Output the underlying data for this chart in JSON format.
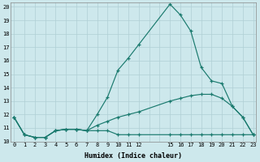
{
  "xlabel": "Humidex (Indice chaleur)",
  "background_color": "#cde8ec",
  "grid_color": "#b0cfd5",
  "line_color": "#1a7a6e",
  "x_ticks": [
    0,
    1,
    2,
    3,
    4,
    5,
    6,
    7,
    8,
    9,
    10,
    11,
    12,
    15,
    16,
    17,
    18,
    19,
    20,
    21,
    22,
    23
  ],
  "xlim": [
    -0.3,
    23.3
  ],
  "ylim": [
    10,
    20.3
  ],
  "y_ticks": [
    10,
    11,
    12,
    13,
    14,
    15,
    16,
    17,
    18,
    19,
    20
  ],
  "series": [
    {
      "x": [
        0,
        1,
        2,
        3,
        4,
        5,
        6,
        7,
        8,
        9,
        10,
        11,
        12,
        15,
        16,
        17,
        18,
        19,
        20,
        21,
        22,
        23
      ],
      "y": [
        11.8,
        10.5,
        10.3,
        10.3,
        10.8,
        10.9,
        10.9,
        10.8,
        10.8,
        10.8,
        10.5,
        10.5,
        10.5,
        10.5,
        10.5,
        10.5,
        10.5,
        10.5,
        10.5,
        10.5,
        10.5,
        10.5
      ]
    },
    {
      "x": [
        0,
        1,
        2,
        3,
        4,
        5,
        6,
        7,
        8,
        9,
        10,
        11,
        12,
        15,
        16,
        17,
        18,
        19,
        20,
        21,
        22,
        23
      ],
      "y": [
        11.8,
        10.5,
        10.3,
        10.3,
        10.8,
        10.9,
        10.9,
        10.8,
        11.2,
        11.5,
        11.8,
        12.0,
        12.2,
        13.0,
        13.2,
        13.4,
        13.5,
        13.5,
        13.2,
        12.6,
        11.8,
        10.5
      ]
    },
    {
      "x": [
        0,
        1,
        2,
        3,
        4,
        5,
        6,
        7,
        8,
        9,
        10,
        11,
        12,
        15,
        16,
        17,
        18,
        19,
        20,
        21,
        22,
        23
      ],
      "y": [
        11.8,
        10.5,
        10.3,
        10.3,
        10.8,
        10.9,
        10.9,
        10.8,
        12.0,
        13.3,
        15.3,
        16.2,
        17.2,
        20.2,
        19.4,
        18.2,
        15.5,
        14.5,
        14.3,
        12.6,
        11.8,
        10.5
      ]
    }
  ]
}
